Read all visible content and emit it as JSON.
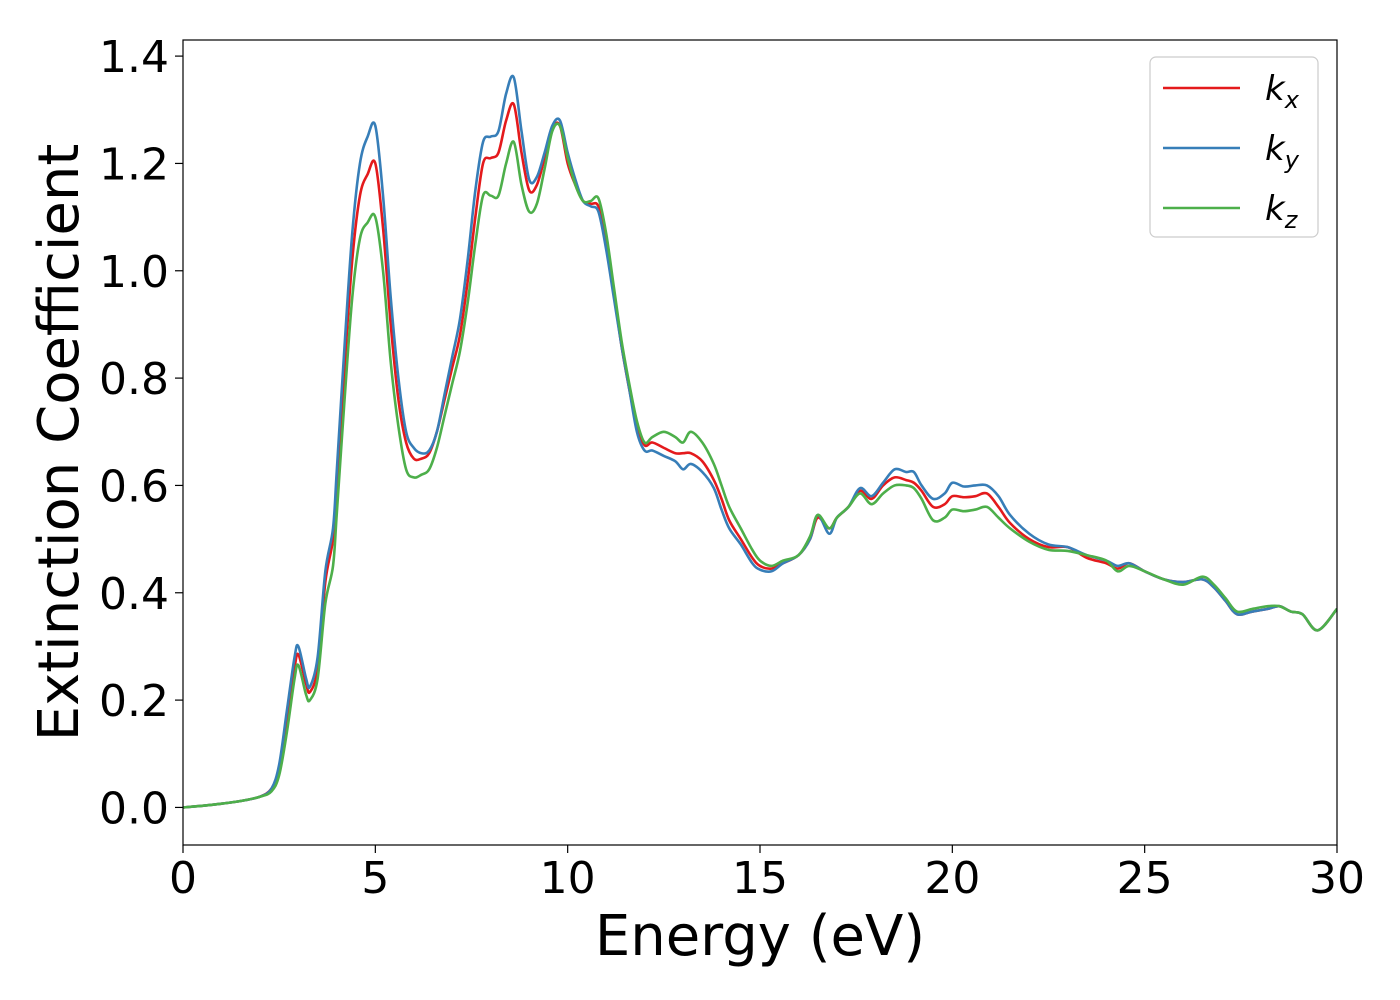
{
  "chart_data": {
    "type": "line",
    "xlabel": "Energy (eV)",
    "ylabel": "Extinction Coefficient",
    "xlim": [
      0,
      30
    ],
    "ylim": [
      -0.07,
      1.43
    ],
    "xticks": [
      0,
      5,
      10,
      15,
      20,
      25,
      30
    ],
    "yticks": [
      0.0,
      0.2,
      0.4,
      0.6,
      0.8,
      1.0,
      1.2,
      1.4
    ],
    "ytick_labels": [
      "0.0",
      "0.2",
      "0.4",
      "0.6",
      "0.8",
      "1.0",
      "1.2",
      "1.4"
    ],
    "grid": false,
    "legend_position": "top-right",
    "x": [
      0,
      0.5,
      1,
      1.5,
      2,
      2.3,
      2.5,
      2.7,
      2.9,
      3,
      3.2,
      3.3,
      3.5,
      3.7,
      3.9,
      4,
      4.2,
      4.4,
      4.6,
      4.8,
      5,
      5.2,
      5.4,
      5.6,
      5.8,
      6,
      6.2,
      6.4,
      6.6,
      6.8,
      7,
      7.2,
      7.4,
      7.6,
      7.8,
      8,
      8.2,
      8.4,
      8.6,
      8.8,
      9,
      9.2,
      9.4,
      9.6,
      9.8,
      10,
      10.2,
      10.4,
      10.6,
      10.8,
      11,
      11.2,
      11.4,
      11.6,
      11.8,
      12,
      12.2,
      12.5,
      12.8,
      13,
      13.2,
      13.5,
      13.8,
      14,
      14.2,
      14.5,
      14.8,
      15,
      15.3,
      15.6,
      16,
      16.3,
      16.5,
      16.8,
      17,
      17.3,
      17.6,
      17.9,
      18.2,
      18.5,
      18.8,
      19,
      19.2,
      19.5,
      19.8,
      20,
      20.3,
      20.6,
      20.9,
      21.2,
      21.5,
      22,
      22.5,
      23,
      23.5,
      24,
      24.3,
      24.6,
      25,
      25.5,
      26,
      26.5,
      26.8,
      27.1,
      27.4,
      27.8,
      28.2,
      28.5,
      28.8,
      29.1,
      29.5,
      30
    ],
    "series": [
      {
        "name": "x",
        "color": "#e41a1c",
        "values": [
          0,
          0.003,
          0.007,
          0.012,
          0.02,
          0.035,
          0.07,
          0.16,
          0.26,
          0.285,
          0.23,
          0.215,
          0.26,
          0.42,
          0.5,
          0.6,
          0.82,
          1.02,
          1.14,
          1.18,
          1.2,
          1.08,
          0.9,
          0.76,
          0.68,
          0.65,
          0.65,
          0.66,
          0.7,
          0.76,
          0.82,
          0.88,
          0.98,
          1.1,
          1.2,
          1.21,
          1.22,
          1.28,
          1.31,
          1.22,
          1.15,
          1.16,
          1.21,
          1.265,
          1.27,
          1.2,
          1.16,
          1.13,
          1.125,
          1.12,
          1.06,
          0.96,
          0.86,
          0.78,
          0.71,
          0.675,
          0.68,
          0.67,
          0.66,
          0.66,
          0.66,
          0.645,
          0.61,
          0.575,
          0.535,
          0.5,
          0.465,
          0.45,
          0.445,
          0.455,
          0.47,
          0.5,
          0.54,
          0.52,
          0.54,
          0.56,
          0.59,
          0.575,
          0.6,
          0.615,
          0.61,
          0.605,
          0.59,
          0.56,
          0.565,
          0.58,
          0.578,
          0.58,
          0.585,
          0.56,
          0.53,
          0.5,
          0.485,
          0.485,
          0.465,
          0.455,
          0.445,
          0.455,
          0.44,
          0.425,
          0.42,
          0.425,
          0.41,
          0.385,
          0.36,
          0.365,
          0.37,
          0.375,
          0.365,
          0.36,
          0.33,
          0.37
        ]
      },
      {
        "name": "y",
        "color": "#377eb8",
        "values": [
          0,
          0.003,
          0.007,
          0.012,
          0.02,
          0.035,
          0.08,
          0.18,
          0.28,
          0.3,
          0.24,
          0.225,
          0.28,
          0.44,
          0.52,
          0.63,
          0.86,
          1.07,
          1.2,
          1.25,
          1.27,
          1.14,
          0.95,
          0.8,
          0.7,
          0.67,
          0.66,
          0.665,
          0.7,
          0.77,
          0.84,
          0.91,
          1.02,
          1.15,
          1.24,
          1.25,
          1.26,
          1.33,
          1.36,
          1.26,
          1.17,
          1.175,
          1.22,
          1.27,
          1.28,
          1.22,
          1.17,
          1.13,
          1.12,
          1.11,
          1.04,
          0.95,
          0.86,
          0.78,
          0.7,
          0.665,
          0.665,
          0.655,
          0.645,
          0.63,
          0.64,
          0.625,
          0.595,
          0.555,
          0.52,
          0.49,
          0.455,
          0.443,
          0.44,
          0.455,
          0.47,
          0.5,
          0.545,
          0.51,
          0.54,
          0.56,
          0.595,
          0.58,
          0.605,
          0.63,
          0.625,
          0.625,
          0.6,
          0.575,
          0.585,
          0.605,
          0.598,
          0.6,
          0.6,
          0.58,
          0.545,
          0.51,
          0.49,
          0.485,
          0.47,
          0.46,
          0.45,
          0.455,
          0.44,
          0.425,
          0.42,
          0.425,
          0.41,
          0.385,
          0.36,
          0.365,
          0.37,
          0.375,
          0.365,
          0.36,
          0.33,
          0.37
        ]
      },
      {
        "name": "z",
        "color": "#4daf4a",
        "values": [
          0,
          0.003,
          0.007,
          0.012,
          0.02,
          0.03,
          0.06,
          0.14,
          0.24,
          0.265,
          0.21,
          0.2,
          0.24,
          0.38,
          0.45,
          0.55,
          0.76,
          0.95,
          1.06,
          1.09,
          1.1,
          1.0,
          0.83,
          0.71,
          0.63,
          0.615,
          0.62,
          0.63,
          0.67,
          0.73,
          0.79,
          0.85,
          0.94,
          1.05,
          1.14,
          1.14,
          1.14,
          1.2,
          1.24,
          1.16,
          1.11,
          1.125,
          1.19,
          1.26,
          1.27,
          1.21,
          1.16,
          1.13,
          1.13,
          1.135,
          1.07,
          0.97,
          0.87,
          0.79,
          0.72,
          0.68,
          0.69,
          0.7,
          0.69,
          0.68,
          0.7,
          0.68,
          0.64,
          0.6,
          0.56,
          0.52,
          0.48,
          0.46,
          0.45,
          0.46,
          0.47,
          0.505,
          0.545,
          0.52,
          0.54,
          0.56,
          0.585,
          0.565,
          0.585,
          0.6,
          0.6,
          0.595,
          0.575,
          0.535,
          0.54,
          0.555,
          0.552,
          0.555,
          0.56,
          0.54,
          0.52,
          0.495,
          0.48,
          0.478,
          0.47,
          0.46,
          0.44,
          0.45,
          0.44,
          0.425,
          0.415,
          0.43,
          0.415,
          0.39,
          0.365,
          0.37,
          0.375,
          0.375,
          0.365,
          0.36,
          0.33,
          0.37
        ]
      }
    ]
  }
}
